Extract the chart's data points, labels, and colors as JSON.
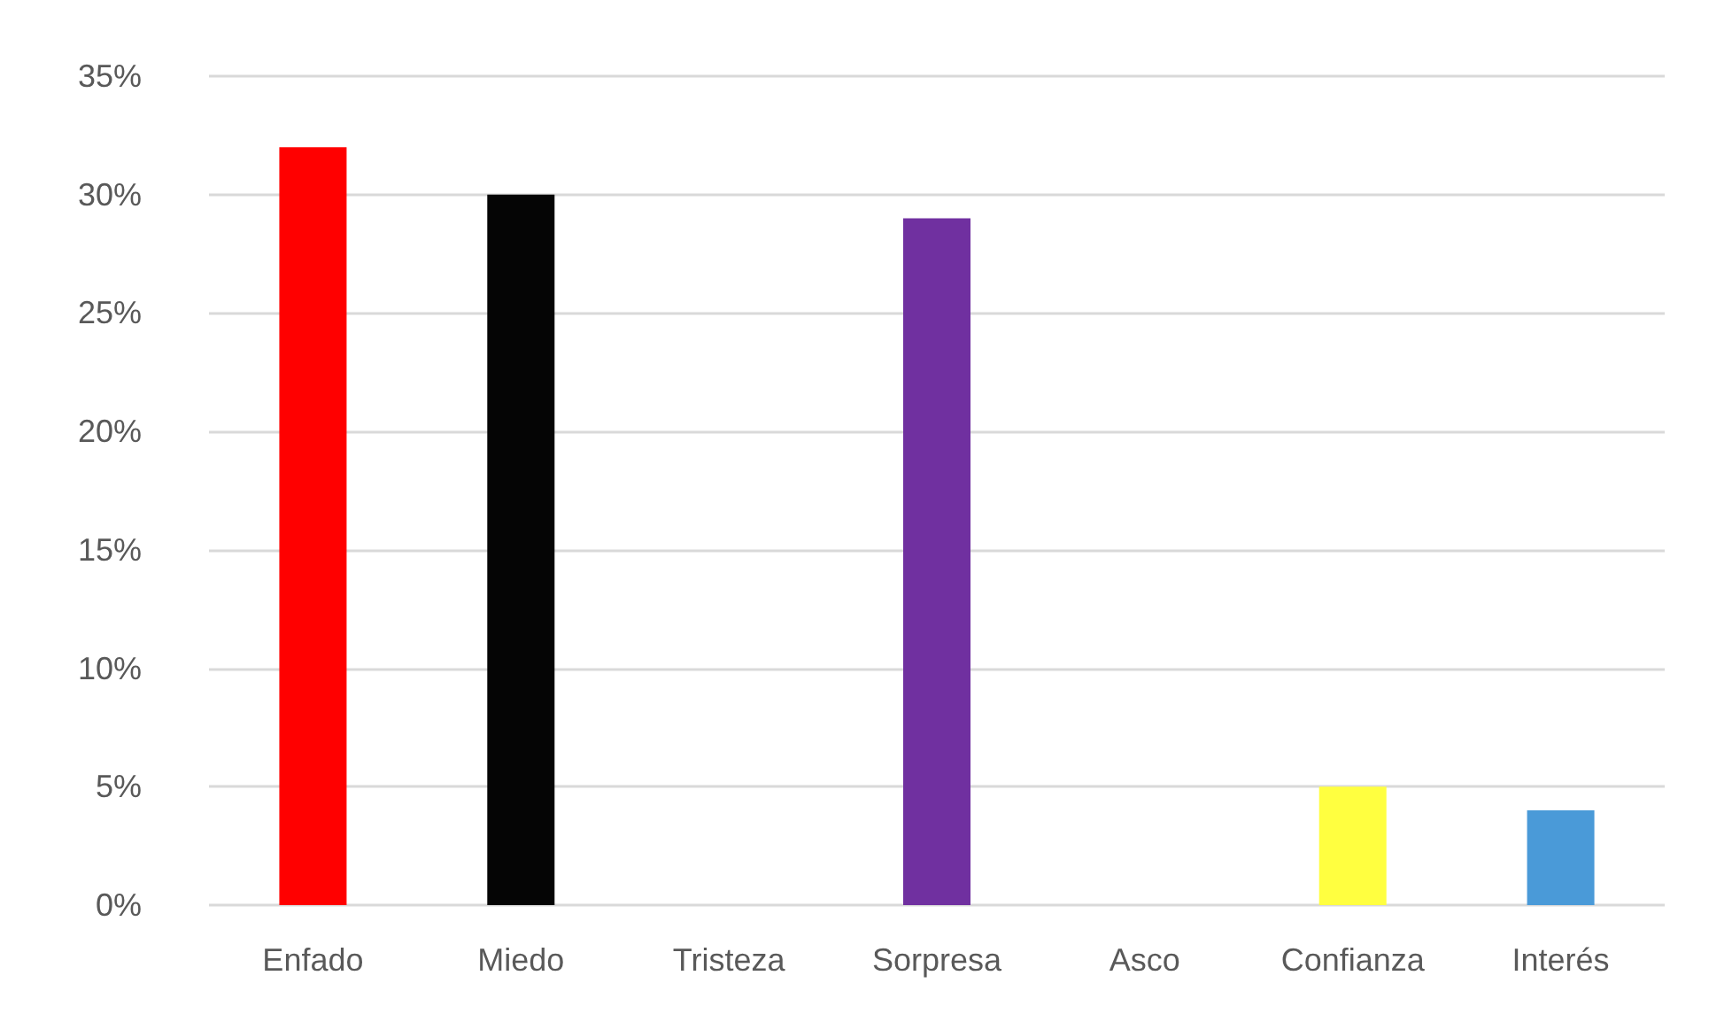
{
  "chart_data": {
    "type": "bar",
    "categories": [
      "Enfado",
      "Miedo",
      "Tristeza",
      "Sorpresa",
      "Asco",
      "Confianza",
      "Interés"
    ],
    "values": [
      32,
      30,
      0,
      29,
      0,
      5,
      4
    ],
    "colors": [
      "#ff0000",
      "#050505",
      null,
      "#7030a0",
      null,
      "#ffff40",
      "#4a9ad8"
    ],
    "ylim": [
      0,
      35
    ],
    "yticks": [
      {
        "value": 0,
        "label": "0%"
      },
      {
        "value": 5,
        "label": "5%"
      },
      {
        "value": 10,
        "label": "10%"
      },
      {
        "value": 15,
        "label": "15%"
      },
      {
        "value": 20,
        "label": "20%"
      },
      {
        "value": 25,
        "label": "25%"
      },
      {
        "value": 30,
        "label": "30%"
      },
      {
        "value": 35,
        "label": "35%"
      }
    ],
    "grid": "y"
  }
}
